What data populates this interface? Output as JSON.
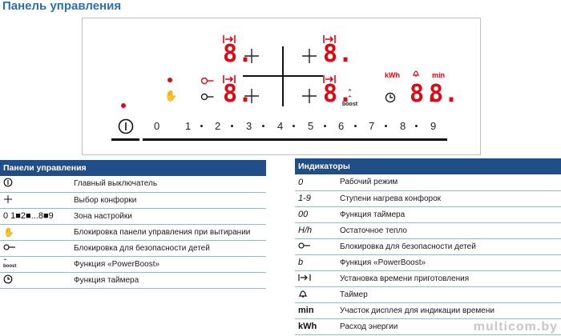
{
  "title": "Панель управления",
  "panel": {
    "display_digit": "8.",
    "boost_label": "boost",
    "kwh_label": "kWh",
    "min_label": "min",
    "scale": [
      "0",
      "1",
      "2",
      "3",
      "4",
      "5",
      "6",
      "7",
      "8",
      "9"
    ]
  },
  "left_table": {
    "header": "Панели управления",
    "rows": [
      {
        "symbol": "ⓘ",
        "symbol_name": "power-switch-icon",
        "label": "Главный выключатель"
      },
      {
        "symbol": "+",
        "symbol_name": "burner-select-icon",
        "label": "Выбор конфорки"
      },
      {
        "symbol": "0 1■2■...8■9",
        "symbol_name": "scale-text",
        "label": "Зона настройки"
      },
      {
        "symbol": "✋",
        "symbol_name": "wipe-lock-icon",
        "label": "Блокировка панели управления при вытирании"
      },
      {
        "symbol": "⊸",
        "symbol_name": "child-lock-icon",
        "label": "Блокировка для безопасности детей"
      },
      {
        "symbol": "boost",
        "symbol_name": "powerboost-icon",
        "label": "Функция «PowerBoost»"
      },
      {
        "symbol": "◷",
        "symbol_name": "timer-icon",
        "label": "Функция таймера"
      }
    ]
  },
  "right_table": {
    "header": "Индикаторы",
    "rows": [
      {
        "symbol": "0",
        "label": "Рабочий режим"
      },
      {
        "symbol": "1-9",
        "label": "Ступени нагрева конфорок"
      },
      {
        "symbol": "00",
        "label": "Функция таймера"
      },
      {
        "symbol": "H/h",
        "label": "Остаточное тепло"
      },
      {
        "symbol": "⊸",
        "label": "Блокировка для безопасности детей"
      },
      {
        "symbol": "b",
        "label": "Функция «PowerBoost»"
      },
      {
        "symbol": "|→|",
        "label": "Установка времени приготовления"
      },
      {
        "symbol": "🔔",
        "label": "Таймер"
      },
      {
        "symbol": "min",
        "label": "Участок дисплея для индикации времени"
      },
      {
        "symbol": "kWh",
        "label": "Расход энергии"
      }
    ]
  },
  "watermark": "multicom.by"
}
